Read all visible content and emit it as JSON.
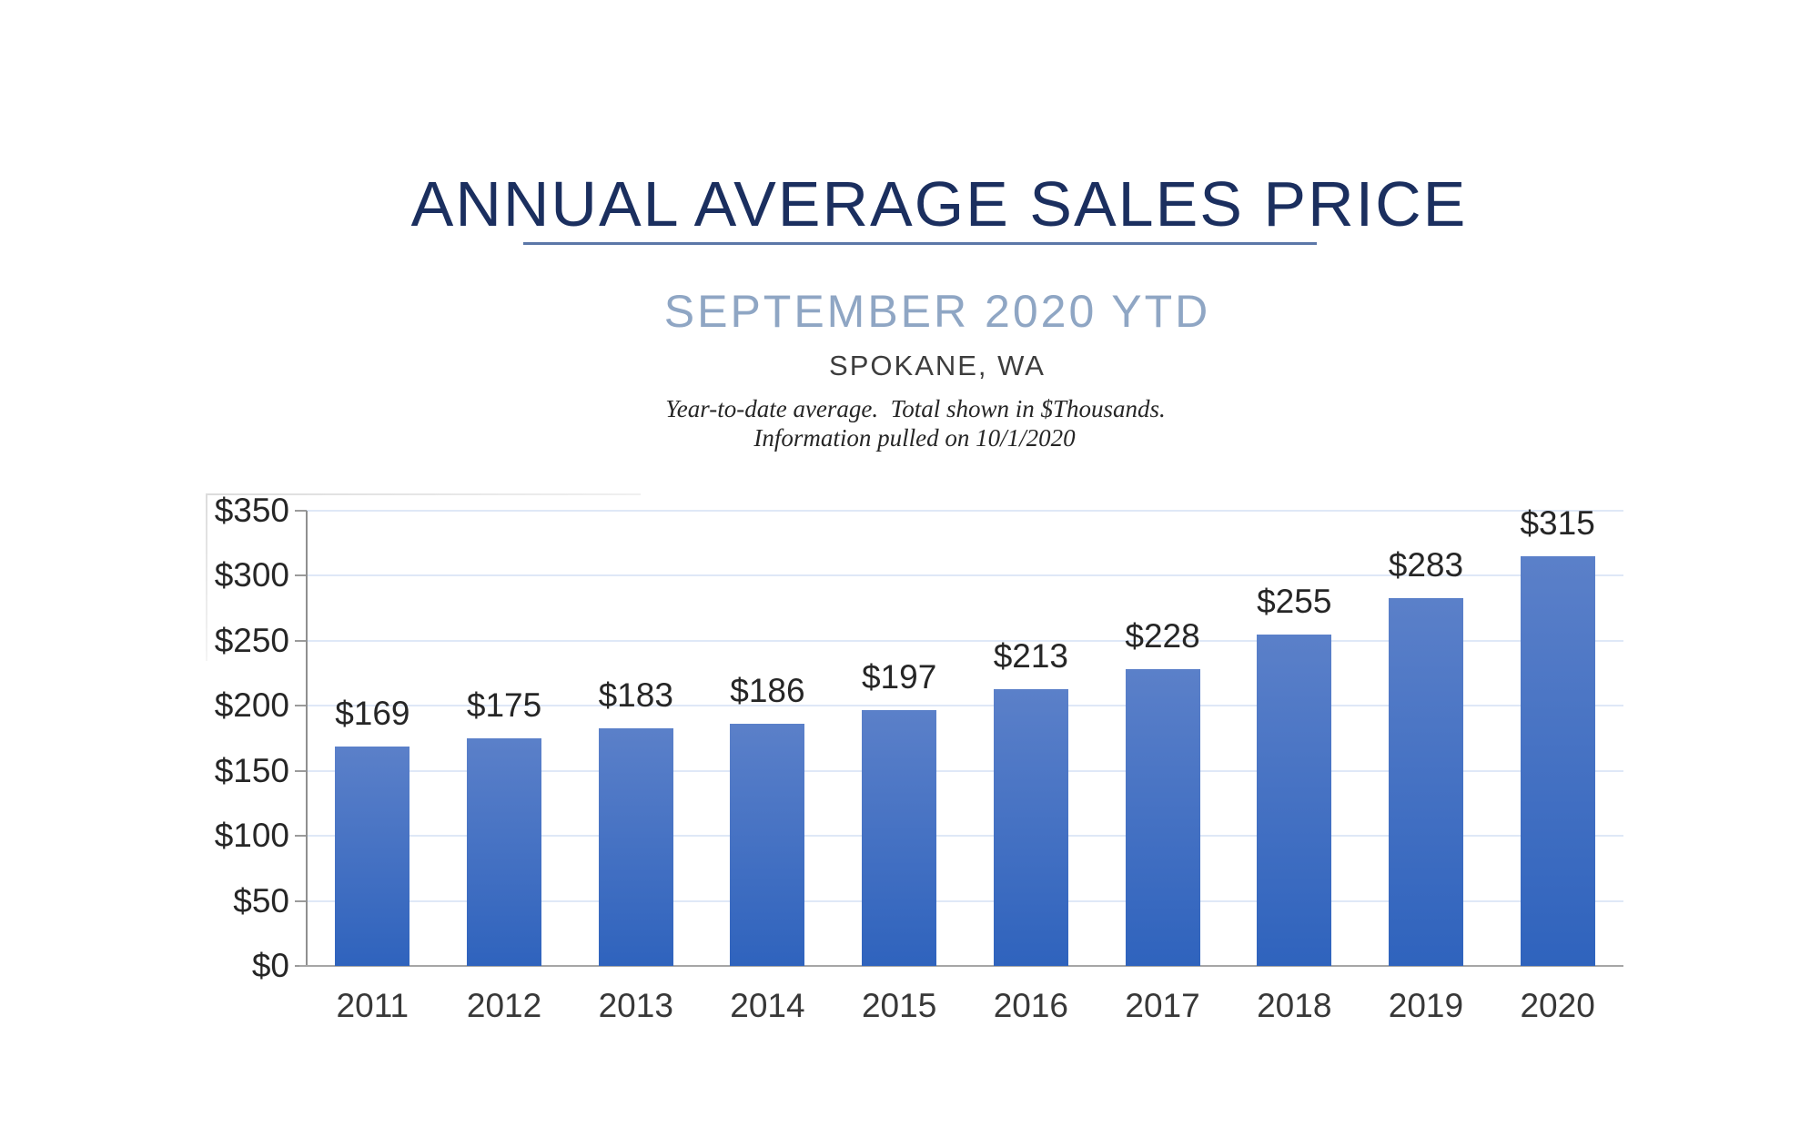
{
  "header": {
    "title": "ANNUAL AVERAGE SALES PRICE",
    "subtitle": "SEPTEMBER 2020 YTD",
    "location": "SPOKANE, WA",
    "note_line1": "Year-to-date average.  Total shown in $Thousands.",
    "note_line2": "Information pulled on 10/1/2020"
  },
  "colors": {
    "title_navy": "#1b2f5f",
    "divider_blue": "#5b77a8",
    "subtitle_blue": "#8fa6c4",
    "location_gray": "#3d3d3d",
    "label_black": "#262626",
    "axis_gray": "#a6a6a6",
    "gridline_blue": "#dfe8f7",
    "bar_gradient_top": "#5b80c9",
    "bar_gradient_bottom": "#2f63bd"
  },
  "chart_data": {
    "type": "bar",
    "title": "ANNUAL AVERAGE SALES PRICE",
    "subtitle": "SEPTEMBER 2020 YTD",
    "region": "SPOKANE, WA",
    "units_note": "Year-to-date average.  Total shown in $Thousands.",
    "pulled_note": "Information pulled on 10/1/2020",
    "categories": [
      "2011",
      "2012",
      "2013",
      "2014",
      "2015",
      "2016",
      "2017",
      "2018",
      "2019",
      "2020"
    ],
    "values": [
      169,
      175,
      183,
      186,
      197,
      213,
      228,
      255,
      283,
      315
    ],
    "bar_labels": [
      "$169",
      "$175",
      "$183",
      "$186",
      "$197",
      "$213",
      "$228",
      "$255",
      "$283",
      "$315"
    ],
    "xlabel": "",
    "ylabel": "",
    "y_axis": {
      "min": 0,
      "max": 350,
      "tick_step": 50,
      "tick_labels": [
        "$350",
        "$300",
        "$250",
        "$200",
        "$150",
        "$100",
        "$50",
        "$0"
      ]
    },
    "grid": true,
    "legend": false
  }
}
